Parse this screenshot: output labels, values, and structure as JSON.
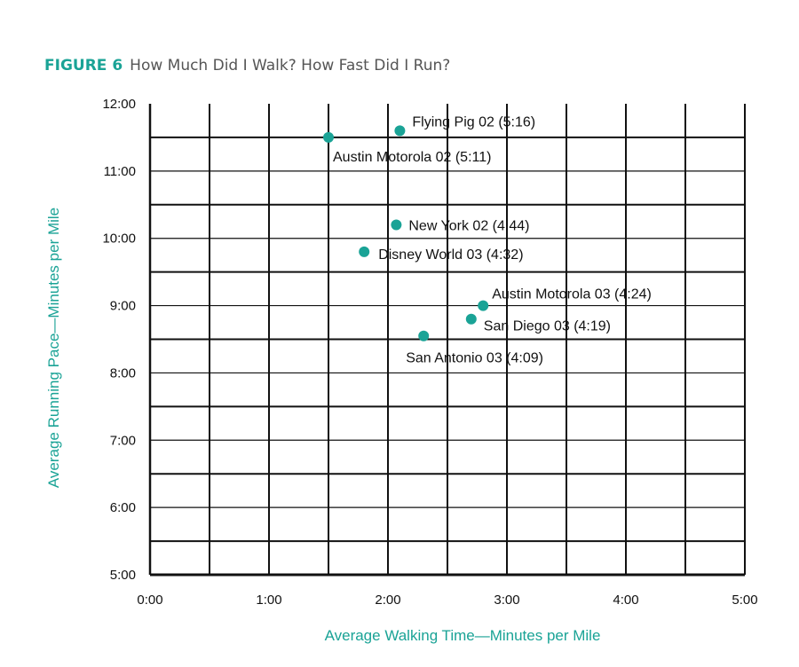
{
  "figure": {
    "number": "FIGURE 6",
    "title": "How Much Did I Walk? How Fast Did I Run?"
  },
  "chart_data": {
    "type": "scatter",
    "xlabel": "Average Walking Time—Minutes per Mile",
    "ylabel": "Average Running Pace—Minutes per Mile",
    "xlim": [
      0,
      5
    ],
    "ylim": [
      5,
      12
    ],
    "x_ticks": [
      {
        "value": 0,
        "label": "0:00"
      },
      {
        "value": 1,
        "label": "1:00"
      },
      {
        "value": 2,
        "label": "2:00"
      },
      {
        "value": 3,
        "label": "3:00"
      },
      {
        "value": 4,
        "label": "4:00"
      },
      {
        "value": 5,
        "label": "5:00"
      }
    ],
    "y_ticks": [
      {
        "value": 5,
        "label": "5:00"
      },
      {
        "value": 6,
        "label": "6:00"
      },
      {
        "value": 7,
        "label": "7:00"
      },
      {
        "value": 8,
        "label": "8:00"
      },
      {
        "value": 9,
        "label": "9:00"
      },
      {
        "value": 10,
        "label": "10:00"
      },
      {
        "value": 11,
        "label": "11:00"
      },
      {
        "value": 12,
        "label": "12:00"
      }
    ],
    "grid": true,
    "marker_color": "#1aa396",
    "points": [
      {
        "label": "Flying Pig 02 (5:16)",
        "x": 2.1,
        "y": 11.6
      },
      {
        "label": "Austin Motorola 02 (5:11)",
        "x": 1.5,
        "y": 11.5
      },
      {
        "label": "New York 02 (4:44)",
        "x": 2.07,
        "y": 10.2
      },
      {
        "label": "Disney World 03 (4:32)",
        "x": 1.8,
        "y": 9.8
      },
      {
        "label": "Austin Motorola 03 (4:24)",
        "x": 2.8,
        "y": 9.0
      },
      {
        "label": "San Diego 03 (4:19)",
        "x": 2.7,
        "y": 8.8
      },
      {
        "label": "San Antonio 03 (4:09)",
        "x": 2.3,
        "y": 8.55
      }
    ]
  }
}
